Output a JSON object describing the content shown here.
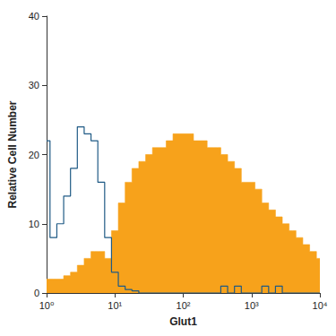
{
  "chart_data": {
    "type": "line",
    "x_label": "Glut1",
    "y_label": "Relative Cell Number",
    "x": [
      1,
      1.259,
      1.585,
      1.995,
      2.512,
      3.162,
      3.981,
      5.012,
      6.31,
      7.943,
      10,
      12.59,
      15.85,
      19.95,
      25.12,
      31.62,
      39.81,
      50.12,
      63.1,
      79.43,
      100,
      125.9,
      158.5,
      199.5,
      251.2,
      316.2,
      398.1,
      501.2,
      631,
      794.3,
      1000,
      1259,
      1585,
      1995,
      2512,
      3162,
      3981,
      5012,
      6310,
      7943,
      10000
    ],
    "series": [
      {
        "type": "area",
        "color": "#f7a21b",
        "values": [
          2,
          2,
          2,
          2.5,
          3,
          4,
          5,
          6,
          6,
          5,
          9,
          13,
          16,
          18,
          19,
          20,
          21,
          21,
          22,
          23,
          23,
          23,
          22,
          22,
          21,
          21,
          20,
          19,
          18,
          16,
          16,
          15,
          13,
          12,
          11,
          10,
          9,
          8,
          7,
          6,
          5
        ]
      },
      {
        "type": "line",
        "color": "#1f5a85",
        "values": [
          22,
          8,
          10,
          14,
          18,
          24,
          23,
          22,
          16,
          8,
          3,
          1,
          0.5,
          0.3,
          0,
          0,
          0,
          0,
          0,
          0,
          0,
          0,
          0,
          0,
          0,
          0,
          1,
          0,
          1,
          0,
          0,
          0,
          1,
          0,
          1,
          0,
          0,
          0,
          0,
          0,
          0
        ]
      }
    ],
    "log": "x",
    "xlim": [
      1,
      10000
    ],
    "xticks": [
      {
        "value": 1,
        "label": "10⁰"
      },
      {
        "value": 10,
        "label": "10¹"
      },
      {
        "value": 100,
        "label": "10²"
      },
      {
        "value": 1000,
        "label": "10³"
      },
      {
        "value": 10000,
        "label": "10⁴"
      }
    ],
    "ylim": [
      0,
      40
    ],
    "yticks": [
      0,
      10,
      20,
      30,
      40
    ],
    "grid": false
  }
}
